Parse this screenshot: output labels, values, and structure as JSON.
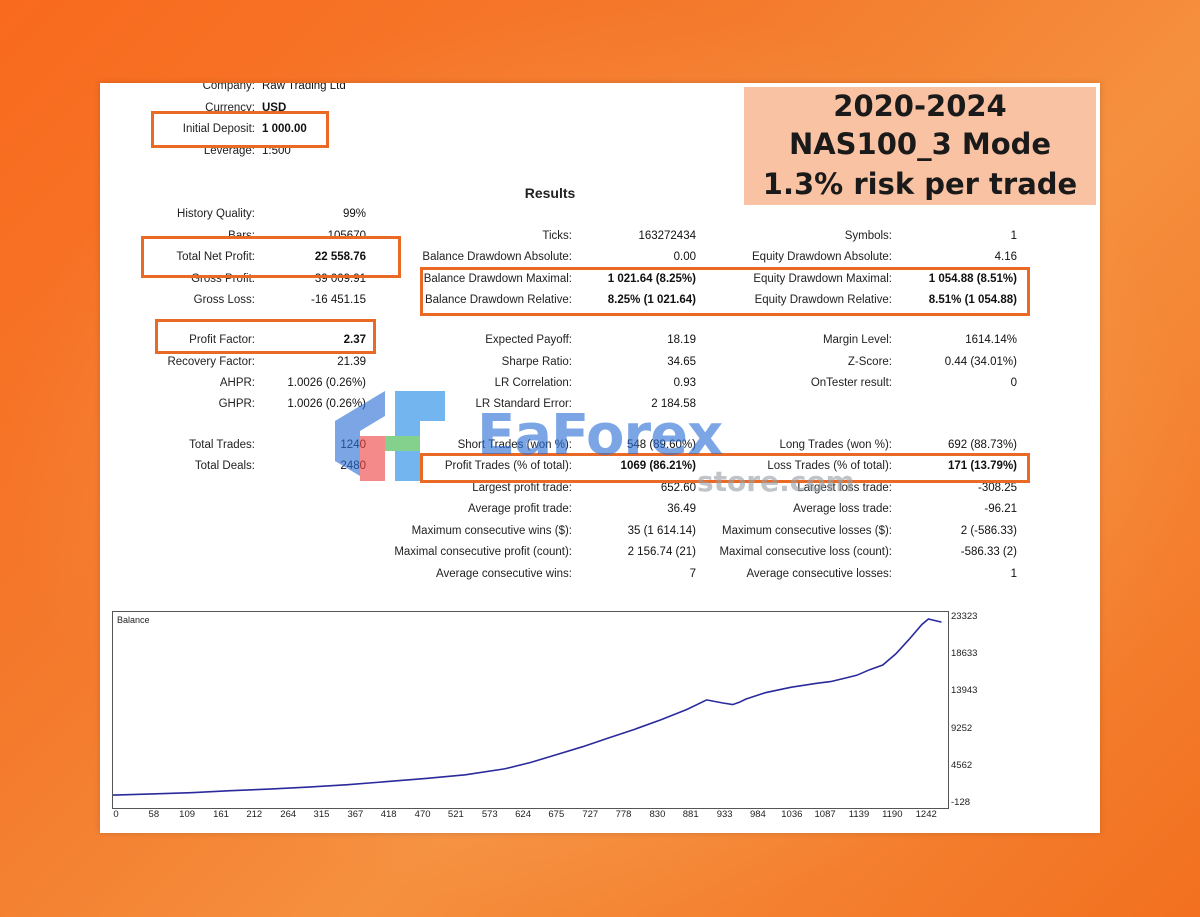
{
  "account": {
    "company_label": "Company:",
    "company_value": "Raw Trading Ltd",
    "currency_label": "Currency:",
    "currency_value": "USD",
    "deposit_label": "Initial Deposit:",
    "deposit_value": "1 000.00",
    "leverage_label": "Leverage:",
    "leverage_value": "1:500"
  },
  "banner": {
    "line1": "2020-2024",
    "line2": "NAS100_3 Mode",
    "line3": "1.3% risk per trade"
  },
  "results_title": "Results",
  "watermark": {
    "brand": "EaForex",
    "sub": "store.com"
  },
  "left_stats": [
    {
      "label": "History Quality:",
      "value": "99%"
    },
    {
      "label": "Bars:",
      "value": "105670"
    },
    {
      "label": "Total Net Profit:",
      "value": "22 558.76"
    },
    {
      "label": "Gross Profit:",
      "value": "39 009.91"
    },
    {
      "label": "Gross Loss:",
      "value": "-16 451.15"
    },
    {
      "label": "Profit Factor:",
      "value": "2.37"
    },
    {
      "label": "Recovery Factor:",
      "value": "21.39"
    },
    {
      "label": "AHPR:",
      "value": "1.0026 (0.26%)"
    },
    {
      "label": "GHPR:",
      "value": "1.0026 (0.26%)"
    },
    {
      "label": "Total Trades:",
      "value": "1240"
    },
    {
      "label": "Total Deals:",
      "value": "2480"
    }
  ],
  "mid_stats": [
    {
      "label": "Ticks:",
      "value": "163272434"
    },
    {
      "label": "Balance Drawdown Absolute:",
      "value": "0.00"
    },
    {
      "label": "Balance Drawdown Maximal:",
      "value": "1 021.64 (8.25%)"
    },
    {
      "label": "Balance Drawdown Relative:",
      "value": "8.25% (1 021.64)"
    },
    {
      "label": "Expected Payoff:",
      "value": "18.19"
    },
    {
      "label": "Sharpe Ratio:",
      "value": "34.65"
    },
    {
      "label": "LR Correlation:",
      "value": "0.93"
    },
    {
      "label": "LR Standard Error:",
      "value": "2 184.58"
    },
    {
      "label": "Short Trades (won %):",
      "value": "548 (89.60%)"
    },
    {
      "label": "Profit Trades (% of total):",
      "value": "1069 (86.21%)"
    },
    {
      "label": "Largest profit trade:",
      "value": "652.60"
    },
    {
      "label": "Average profit trade:",
      "value": "36.49"
    },
    {
      "label": "Maximum consecutive wins ($):",
      "value": "35 (1 614.14)"
    },
    {
      "label": "Maximal consecutive profit (count):",
      "value": "2 156.74 (21)"
    },
    {
      "label": "Average consecutive wins:",
      "value": "7"
    }
  ],
  "right_stats": [
    {
      "label": "Symbols:",
      "value": "1"
    },
    {
      "label": "Equity Drawdown Absolute:",
      "value": "4.16"
    },
    {
      "label": "Equity Drawdown Maximal:",
      "value": "1 054.88 (8.51%)"
    },
    {
      "label": "Equity Drawdown Relative:",
      "value": "8.51% (1 054.88)"
    },
    {
      "label": "Margin Level:",
      "value": "1614.14%"
    },
    {
      "label": "Z-Score:",
      "value": "0.44 (34.01%)"
    },
    {
      "label": "OnTester result:",
      "value": "0"
    },
    {
      "label": "Long Trades (won %):",
      "value": "692 (88.73%)"
    },
    {
      "label": "Loss Trades (% of total):",
      "value": "171 (13.79%)"
    },
    {
      "label": "Largest loss trade:",
      "value": "-308.25"
    },
    {
      "label": "Average loss trade:",
      "value": "-96.21"
    },
    {
      "label": "Maximum consecutive losses ($):",
      "value": "2 (-586.33)"
    },
    {
      "label": "Maximal consecutive loss (count):",
      "value": "-586.33 (2)"
    },
    {
      "label": "Average consecutive losses:",
      "value": "1"
    }
  ],
  "chart_data": {
    "type": "line",
    "title": "Balance",
    "ylim": [
      -128,
      23323
    ],
    "yticks": [
      "23323",
      "18633",
      "13943",
      "9252",
      "4562",
      "-128"
    ],
    "xlim": [
      0,
      1280
    ],
    "xticks": [
      "0",
      "58",
      "109",
      "161",
      "212",
      "264",
      "315",
      "367",
      "418",
      "470",
      "521",
      "573",
      "624",
      "675",
      "727",
      "778",
      "830",
      "881",
      "933",
      "984",
      "1036",
      "1087",
      "1139",
      "1190",
      "1242"
    ],
    "series": [
      {
        "color": "#2a2a9c",
        "x": [
          0,
          60,
          120,
          180,
          240,
          300,
          360,
          420,
          480,
          540,
          600,
          640,
          680,
          720,
          760,
          800,
          840,
          880,
          910,
          935,
          950,
          960,
          970,
          985,
          1000,
          1040,
          1080,
          1100,
          1120,
          1140,
          1160,
          1180,
          1200,
          1220,
          1240,
          1250,
          1270
        ],
        "y": [
          1000,
          1150,
          1300,
          1550,
          1750,
          2000,
          2300,
          2700,
          3100,
          3550,
          4300,
          5100,
          6100,
          7100,
          8200,
          9300,
          10500,
          11800,
          13000,
          12600,
          12400,
          12700,
          13100,
          13500,
          13900,
          14600,
          15100,
          15300,
          15700,
          16100,
          16800,
          17400,
          18800,
          20600,
          22500,
          23200,
          22800
        ]
      }
    ]
  },
  "colors": {
    "highlight": "#ea6a25",
    "banner_bg": "#f9c2a3",
    "line": "#2a2a9c"
  }
}
